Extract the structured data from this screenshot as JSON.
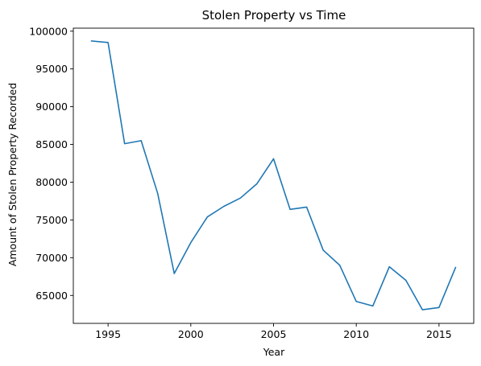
{
  "chart_data": {
    "type": "line",
    "title": "Stolen Property vs Time",
    "xlabel": "Year",
    "ylabel": "Amount of Stolen Property Recorded",
    "xlim": [
      1992.9,
      2017.1
    ],
    "ylim": [
      61300,
      100400
    ],
    "xticks": [
      1995,
      2000,
      2005,
      2010,
      2015
    ],
    "yticks": [
      65000,
      70000,
      75000,
      80000,
      85000,
      90000,
      95000,
      100000
    ],
    "grid": false,
    "legend": "none",
    "line_color": "#1f77b4",
    "series": [
      {
        "x": [
          1994,
          1995,
          1996,
          1997,
          1998,
          1999,
          2000,
          2001,
          2002,
          2003,
          2004,
          2005,
          2006,
          2007,
          2008,
          2009,
          2010,
          2011,
          2012,
          2013,
          2014,
          2015,
          2016
        ],
        "values": [
          98700,
          98500,
          85100,
          85500,
          78500,
          67900,
          72000,
          75400,
          76800,
          77900,
          79800,
          83100,
          76400,
          76700,
          71000,
          69000,
          64200,
          63600,
          68800,
          67000,
          63100,
          63400,
          68700
        ]
      }
    ]
  }
}
